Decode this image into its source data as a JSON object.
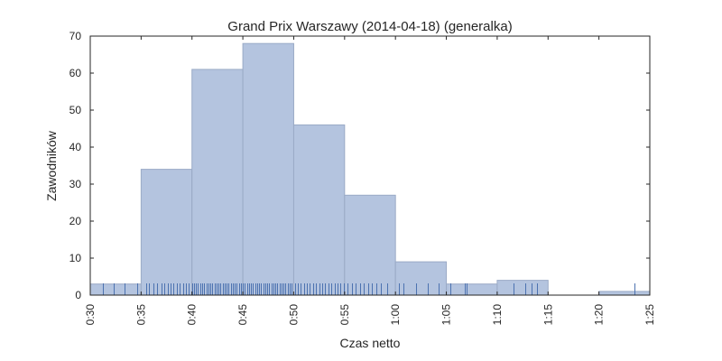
{
  "chart_data": {
    "type": "bar",
    "title": "Grand Prix Warszawy (2014-04-18) (generalka)",
    "xlabel": "Czas netto",
    "ylabel": "Zawodników",
    "ylim": [
      0,
      70
    ],
    "xlim_minutes": [
      30,
      85
    ],
    "yticks": [
      "0",
      "10",
      "20",
      "30",
      "40",
      "50",
      "60",
      "70"
    ],
    "xticks": [
      "0:30",
      "0:35",
      "0:40",
      "0:45",
      "0:50",
      "0:55",
      "1:00",
      "1:05",
      "1:10",
      "1:15",
      "1:20",
      "1:25"
    ],
    "bins": [
      {
        "start": 30,
        "end": 35,
        "count": 3
      },
      {
        "start": 35,
        "end": 40,
        "count": 34
      },
      {
        "start": 40,
        "end": 45,
        "count": 61
      },
      {
        "start": 45,
        "end": 50,
        "count": 68
      },
      {
        "start": 50,
        "end": 55,
        "count": 46
      },
      {
        "start": 55,
        "end": 60,
        "count": 27
      },
      {
        "start": 60,
        "end": 65,
        "count": 9
      },
      {
        "start": 65,
        "end": 70,
        "count": 3
      },
      {
        "start": 70,
        "end": 75,
        "count": 4
      },
      {
        "start": 75,
        "end": 80,
        "count": 0
      },
      {
        "start": 80,
        "end": 85,
        "count": 1
      }
    ],
    "rug_minutes": [
      31.2,
      32.3,
      33.4,
      34.6,
      35.5,
      35.8,
      36.2,
      36.6,
      37.0,
      37.3,
      37.6,
      37.9,
      38.2,
      38.5,
      38.8,
      39.1,
      39.4,
      39.7,
      40.0,
      40.2,
      40.4,
      40.6,
      40.8,
      41.0,
      41.2,
      41.4,
      41.6,
      41.8,
      42.0,
      42.2,
      42.4,
      42.6,
      42.8,
      43.0,
      43.2,
      43.4,
      43.6,
      43.8,
      44.0,
      44.2,
      44.4,
      44.6,
      44.8,
      45.0,
      45.2,
      45.4,
      45.6,
      45.8,
      46.0,
      46.2,
      46.4,
      46.6,
      46.8,
      47.0,
      47.2,
      47.4,
      47.6,
      47.8,
      48.0,
      48.2,
      48.4,
      48.6,
      48.8,
      49.0,
      49.2,
      49.4,
      49.6,
      49.8,
      50.1,
      50.4,
      50.7,
      51.0,
      51.3,
      51.6,
      51.9,
      52.2,
      52.5,
      52.8,
      53.1,
      53.4,
      53.7,
      54.0,
      54.3,
      54.6,
      54.9,
      55.3,
      55.7,
      56.1,
      56.5,
      56.9,
      57.3,
      57.7,
      58.1,
      58.6,
      59.2,
      60.3,
      60.8,
      62.0,
      63.2,
      64.2,
      65.4,
      66.8,
      67.0,
      71.6,
      72.8,
      73.4,
      73.9,
      83.5
    ]
  }
}
